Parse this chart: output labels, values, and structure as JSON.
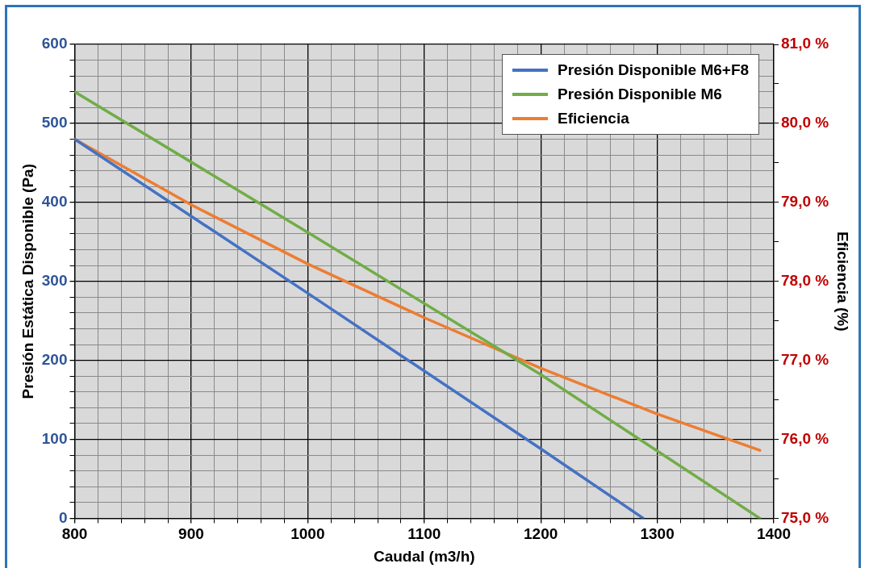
{
  "chart_data": {
    "type": "line",
    "xlabel": "Caudal (m3/h)",
    "ylabel": "Presión Estática Disponible (Pa)",
    "y2label": "Eficiencia (%)",
    "xlim": [
      800,
      1400
    ],
    "ylim": [
      0,
      600
    ],
    "y2lim": [
      75,
      81
    ],
    "xticks": [
      800,
      {
        "value": 820,
        "label": null
      },
      {
        "value": 840,
        "label": null
      },
      {
        "value": 860,
        "label": null
      },
      {
        "value": 880,
        "label": null
      },
      900,
      {
        "value": 920,
        "label": null
      },
      {
        "value": 940,
        "label": null
      },
      {
        "value": 960,
        "label": null
      },
      {
        "value": 980,
        "label": null
      },
      1000,
      {
        "value": 1020,
        "label": null
      },
      {
        "value": 1040,
        "label": null
      },
      {
        "value": 1060,
        "label": null
      },
      {
        "value": 1080,
        "label": null
      },
      1100,
      {
        "value": 1120,
        "label": null
      },
      {
        "value": 1140,
        "label": null
      },
      {
        "value": 1160,
        "label": null
      },
      {
        "value": 1180,
        "label": null
      },
      1200,
      {
        "value": 1220,
        "label": null
      },
      {
        "value": 1240,
        "label": null
      },
      {
        "value": 1260,
        "label": null
      },
      {
        "value": 1280,
        "label": null
      },
      1300,
      {
        "value": 1320,
        "label": null
      },
      {
        "value": 1340,
        "label": null
      },
      {
        "value": 1360,
        "label": null
      },
      {
        "value": 1380,
        "label": null
      },
      1400
    ],
    "yticks": [
      0,
      {
        "value": 20,
        "label": null
      },
      {
        "value": 40,
        "label": null
      },
      {
        "value": 60,
        "label": null
      },
      {
        "value": 80,
        "label": null
      },
      100,
      {
        "value": 120,
        "label": null
      },
      {
        "value": 140,
        "label": null
      },
      {
        "value": 160,
        "label": null
      },
      {
        "value": 180,
        "label": null
      },
      200,
      {
        "value": 220,
        "label": null
      },
      {
        "value": 240,
        "label": null
      },
      {
        "value": 260,
        "label": null
      },
      {
        "value": 280,
        "label": null
      },
      300,
      {
        "value": 320,
        "label": null
      },
      {
        "value": 340,
        "label": null
      },
      {
        "value": 360,
        "label": null
      },
      {
        "value": 380,
        "label": null
      },
      400,
      {
        "value": 420,
        "label": null
      },
      {
        "value": 440,
        "label": null
      },
      {
        "value": 460,
        "label": null
      },
      {
        "value": 480,
        "label": null
      },
      500,
      {
        "value": 520,
        "label": null
      },
      {
        "value": 540,
        "label": null
      },
      {
        "value": 560,
        "label": null
      },
      {
        "value": 580,
        "label": null
      },
      600
    ],
    "y2ticks": [
      {
        "value": 75,
        "label": "75,0 %"
      },
      {
        "value": 75.5,
        "label": null
      },
      {
        "value": 76,
        "label": "76,0 %"
      },
      {
        "value": 76.5,
        "label": null
      },
      {
        "value": 77,
        "label": "77,0 %"
      },
      {
        "value": 77.5,
        "label": null
      },
      {
        "value": 78,
        "label": "78,0 %"
      },
      {
        "value": 78.5,
        "label": null
      },
      {
        "value": 79,
        "label": "79,0 %"
      },
      {
        "value": 79.5,
        "label": null
      },
      {
        "value": 80,
        "label": "80,0 %"
      },
      {
        "value": 80.5,
        "label": null
      },
      {
        "value": 81,
        "label": "81,0 %"
      }
    ],
    "grid": true,
    "legend": "top right",
    "marker": "none",
    "line_style": "solid",
    "series": [
      {
        "name": "Presión Disponible M6+F8",
        "color": "#4472c4",
        "x": [
          800,
          1000,
          1200,
          1288
        ],
        "values": [
          480,
          285,
          88,
          0
        ]
      },
      {
        "name": "Presión Disponible M6",
        "color": "#70ad47",
        "x": [
          800,
          1000,
          1200,
          1388
        ],
        "values": [
          540,
          362,
          182,
          0
        ]
      },
      {
        "name": "Eficiencia",
        "color": "#ed7d31",
        "axis": "y2",
        "x": [
          800,
          900,
          1000,
          1100,
          1200,
          1300,
          1388
        ],
        "values": [
          79.8,
          78.97,
          78.22,
          77.54,
          76.9,
          76.32,
          75.86
        ]
      }
    ]
  }
}
